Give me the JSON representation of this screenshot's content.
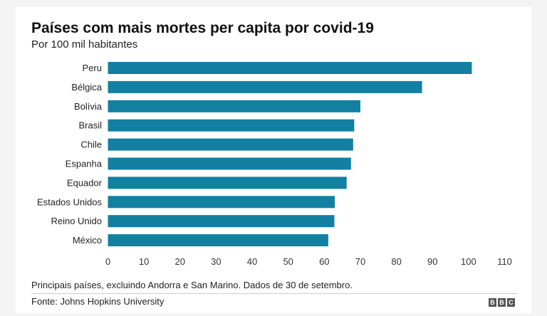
{
  "chart_data": {
    "type": "bar",
    "orientation": "horizontal",
    "title": "Países com mais mortes per capita por covid-19",
    "subtitle": "Por 100 mil habitantes",
    "categories": [
      "Peru",
      "Bélgica",
      "Bolívia",
      "Brasil",
      "Chile",
      "Espanha",
      "Equador",
      "Estados Unidos",
      "Reino Unido",
      "México"
    ],
    "values": [
      100.9,
      87.1,
      70.0,
      68.3,
      68.0,
      67.4,
      66.2,
      62.9,
      62.8,
      61.1
    ],
    "xlim": [
      0,
      110
    ],
    "xticks": [
      "0",
      "10",
      "20",
      "30",
      "40",
      "50",
      "60",
      "70",
      "80",
      "90",
      "100",
      "110"
    ],
    "grid": false,
    "bar_color": "#1380a1"
  },
  "footer": {
    "note": "Principais países, excluindo Andorra e San Marino. Dados de 30 de setembro.",
    "source": "Fonte: Johns Hopkins University",
    "logo": [
      "B",
      "B",
      "C"
    ]
  }
}
